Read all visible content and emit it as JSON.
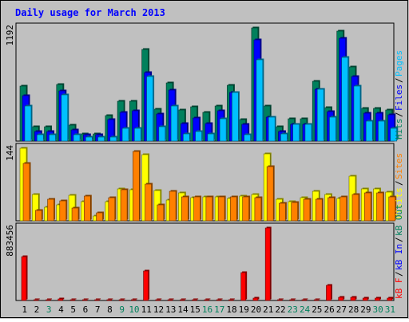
{
  "title": "Daily usage for March 2013",
  "colors": {
    "background": "#C0C0C0",
    "hits": "#00805C",
    "files": "#0000FF",
    "pages": "#00C0FF",
    "visits": "#FFFF00",
    "sites": "#FF8000",
    "kbin": "#0000FF",
    "kbout": "#00805C",
    "kbf": "#FF0000",
    "title": "#0000FF",
    "weekend_label": "#00805C",
    "weekday_label": "#000000"
  },
  "chart_data": {
    "type": "bar",
    "categories": [
      "1",
      "2",
      "3",
      "4",
      "5",
      "6",
      "7",
      "8",
      "9",
      "10",
      "11",
      "12",
      "13",
      "14",
      "15",
      "16",
      "17",
      "18",
      "19",
      "20",
      "21",
      "22",
      "23",
      "24",
      "25",
      "26",
      "27",
      "28",
      "29",
      "30",
      "31"
    ],
    "weekend_days": [
      "3",
      "9",
      "10",
      "16",
      "17",
      "23",
      "24",
      "30",
      "31"
    ],
    "panels": [
      {
        "id": "hits-files-pages",
        "ymax_label": "1192",
        "ymax": 1192,
        "legend": [
          {
            "text": "Hits",
            "color_key": "hits"
          },
          {
            "text": "Files",
            "color_key": "files"
          },
          {
            "text": "Pages",
            "color_key": "pages"
          }
        ],
        "series": [
          {
            "name": "Hits",
            "color_key": "hits",
            "values": [
              578,
              154,
              154,
              598,
              167,
              77,
              77,
              269,
              417,
              417,
              969,
              333,
              611,
              327,
              359,
              301,
              372,
              590,
              224,
              1192,
              372,
              154,
              231,
              231,
              629,
              353,
              1160,
              783,
              340,
              340,
              327
            ]
          },
          {
            "name": "Files",
            "color_key": "files",
            "values": [
              481,
              103,
              103,
              526,
              116,
              64,
              64,
              224,
              301,
              321,
              718,
              289,
              540,
              186,
              244,
              186,
              320,
              513,
              180,
              1070,
              250,
              103,
              173,
              173,
              545,
              314,
              1080,
              680,
              290,
              290,
              276
            ]
          },
          {
            "name": "Pages",
            "color_key": "pages",
            "values": [
              372,
              64,
              64,
              488,
              64,
              38,
              38,
              38,
              134,
              134,
              680,
              154,
              372,
              77,
              99,
              77,
              231,
              513,
              64,
              860,
              250,
              77,
              180,
              180,
              545,
              250,
              880,
              577,
              209,
              209,
              134
            ]
          }
        ]
      },
      {
        "id": "visits-sites",
        "ymax_label": "144",
        "ymax": 144,
        "legend": [
          {
            "text": "Visits",
            "color_key": "visits"
          },
          {
            "text": "Sites",
            "color_key": "sites"
          }
        ],
        "series": [
          {
            "name": "Visits",
            "color_key": "visits",
            "values": [
              144,
              52,
              27,
              31,
              50,
              38,
              9,
              38,
              64,
              62,
              131,
              60,
              41,
              55,
              46,
              47,
              47,
              45,
              49,
              53,
              133,
              43,
              38,
              46,
              59,
              52,
              45,
              88,
              64,
              64,
              57
            ]
          },
          {
            "name": "Sites",
            "color_key": "sites",
            "values": [
              114,
              21,
              42,
              40,
              25,
              49,
              16,
              46,
              62,
              137,
              72,
              31,
              58,
              48,
              47,
              47,
              47,
              48,
              47,
              46,
              107,
              35,
              37,
              42,
              43,
              46,
              48,
              52,
              55,
              55,
              47
            ]
          }
        ]
      },
      {
        "id": "kbytes",
        "ymax_label": "883456",
        "ymax": 883456,
        "legend": [
          {
            "text": "kB F",
            "color_key": "kbf"
          },
          {
            "text": "kB In",
            "color_key": "kbin"
          },
          {
            "text": "kB Out",
            "color_key": "kbout"
          }
        ],
        "series": [
          {
            "name": "kB F",
            "color_key": "kbf",
            "values": [
              530000,
              9000,
              9000,
              15000,
              9000,
              9000,
              9000,
              9000,
              9000,
              9000,
              355000,
              9000,
              9000,
              9000,
              9000,
              9000,
              9000,
              9000,
              340000,
              30000,
              883456,
              9000,
              9000,
              9000,
              9000,
              185000,
              35000,
              35000,
              27000,
              27000,
              27000
            ]
          }
        ]
      }
    ]
  }
}
